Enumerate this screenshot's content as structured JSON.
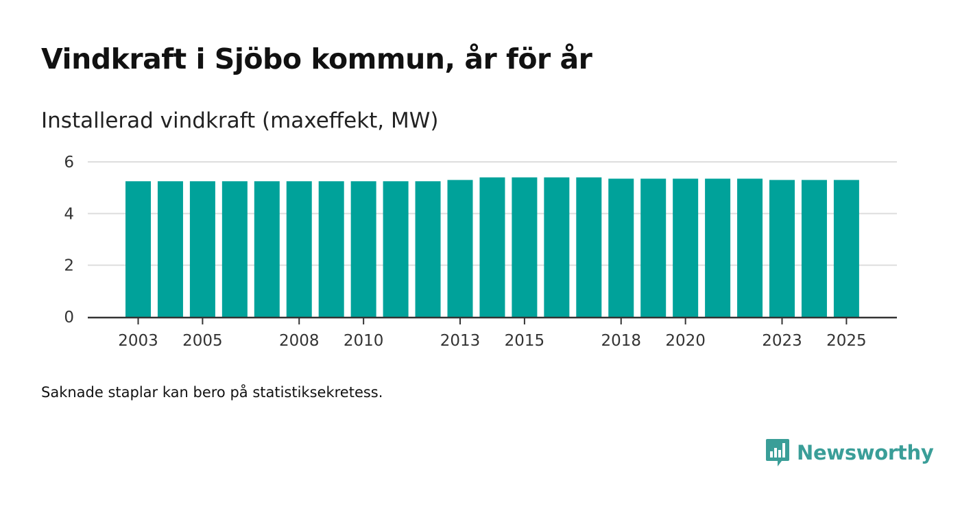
{
  "title": "Vindkraft i Sjöbo kommun, år för år",
  "subtitle": "Installerad vindkraft (maxeffekt, MW)",
  "footnote": "Saknade staplar kan bero på statistiksekretess.",
  "brand": {
    "name": "Newsworthy",
    "color": "#3a9e98"
  },
  "colors": {
    "bar": "#00a29a",
    "grid": "#dddddd",
    "axis": "#333333"
  },
  "chart_data": {
    "type": "bar",
    "title": "Vindkraft i Sjöbo kommun, år för år",
    "ylabel": "Installerad vindkraft (maxeffekt, MW)",
    "xlabel": "",
    "ylim": [
      0,
      6
    ],
    "yticks": [
      0,
      2,
      4,
      6
    ],
    "xtick_labels": [
      "2003",
      "2005",
      "2008",
      "2010",
      "2013",
      "2015",
      "2018",
      "2020",
      "2023",
      "2025"
    ],
    "categories": [
      "2003",
      "2004",
      "2005",
      "2006",
      "2007",
      "2008",
      "2009",
      "2010",
      "2011",
      "2012",
      "2013",
      "2014",
      "2015",
      "2016",
      "2017",
      "2018",
      "2019",
      "2020",
      "2021",
      "2022",
      "2023",
      "2024",
      "2025"
    ],
    "values": [
      5.25,
      5.25,
      5.25,
      5.25,
      5.25,
      5.25,
      5.25,
      5.25,
      5.25,
      5.25,
      5.3,
      5.4,
      5.4,
      5.4,
      5.4,
      5.35,
      5.35,
      5.35,
      5.35,
      5.35,
      5.3,
      5.3,
      5.3
    ],
    "grid": true,
    "legend": "none"
  }
}
